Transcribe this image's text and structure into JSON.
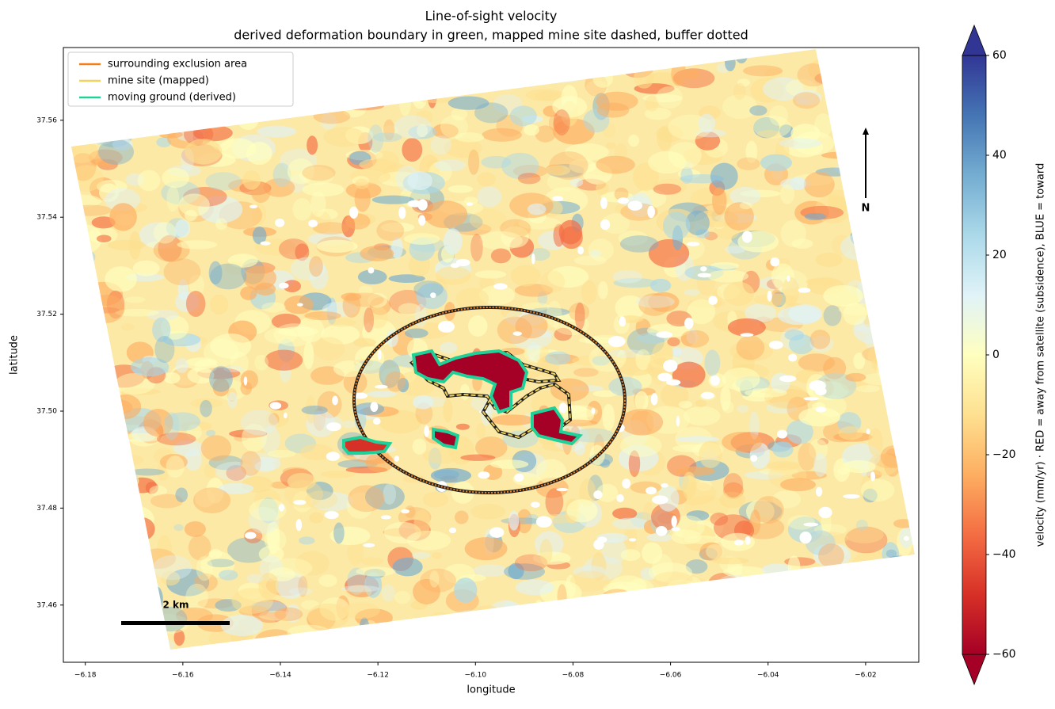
{
  "chart_data": {
    "type": "map",
    "title": "Line-of-sight velocity",
    "subtitle": "derived deformation boundary in green, mapped mine site dashed, buffer dotted",
    "x_label": "longitude",
    "y_label": "latitude",
    "xlim": [
      -6.1845,
      -6.0091
    ],
    "xticks": [
      -6.18,
      -6.16,
      -6.14,
      -6.12,
      -6.1,
      -6.08,
      -6.06,
      -6.04,
      -6.02
    ],
    "ylim": [
      37.4482,
      37.575
    ],
    "yticks": [
      37.46,
      37.48,
      37.5,
      37.52,
      37.54,
      37.56
    ],
    "legend": {
      "position": "upper left",
      "entries": [
        {
          "name": "surrounding exclusion area",
          "color": "#f07f1a"
        },
        {
          "name": "mine site (mapped)",
          "color": "#f2d25a"
        },
        {
          "name": "moving ground (derived)",
          "color": "#1fd198"
        }
      ]
    },
    "scale_bar_label": "2 km",
    "north_label": "N",
    "colorbar": {
      "label": "velocity (mm/yr)   ·   RED = away from satellite (subsidence),  BLUE = toward",
      "colormap": "RdYlBu",
      "lim": [
        -60,
        60
      ],
      "ticks": [
        -60,
        -40,
        -20,
        0,
        20,
        40,
        60
      ],
      "extend": "both"
    }
  }
}
